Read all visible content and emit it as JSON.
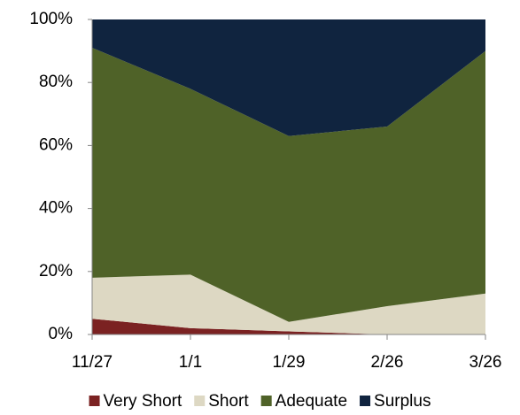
{
  "chart_data": {
    "type": "stacked-area",
    "categories": [
      "11/27",
      "1/1",
      "1/29",
      "2/26",
      "3/26"
    ],
    "series": [
      {
        "name": "Very Short",
        "color": "#7b2222",
        "values": [
          5,
          2,
          1,
          0,
          0
        ]
      },
      {
        "name": "Short",
        "color": "#ddd8c3",
        "values": [
          13,
          17,
          3,
          9,
          13
        ]
      },
      {
        "name": "Adequate",
        "color": "#4f6228",
        "values": [
          73,
          59,
          59,
          57,
          77
        ]
      },
      {
        "name": "Surplus",
        "color": "#10243f",
        "values": [
          9,
          22,
          37,
          34,
          10
        ]
      }
    ],
    "ylim": [
      0,
      100
    ],
    "yticks": [
      {
        "value": 0,
        "label": "0%"
      },
      {
        "value": 20,
        "label": "20%"
      },
      {
        "value": 40,
        "label": "40%"
      },
      {
        "value": 60,
        "label": "60%"
      },
      {
        "value": 80,
        "label": "80%"
      },
      {
        "value": 100,
        "label": "100%"
      }
    ],
    "legend": "bottom"
  }
}
